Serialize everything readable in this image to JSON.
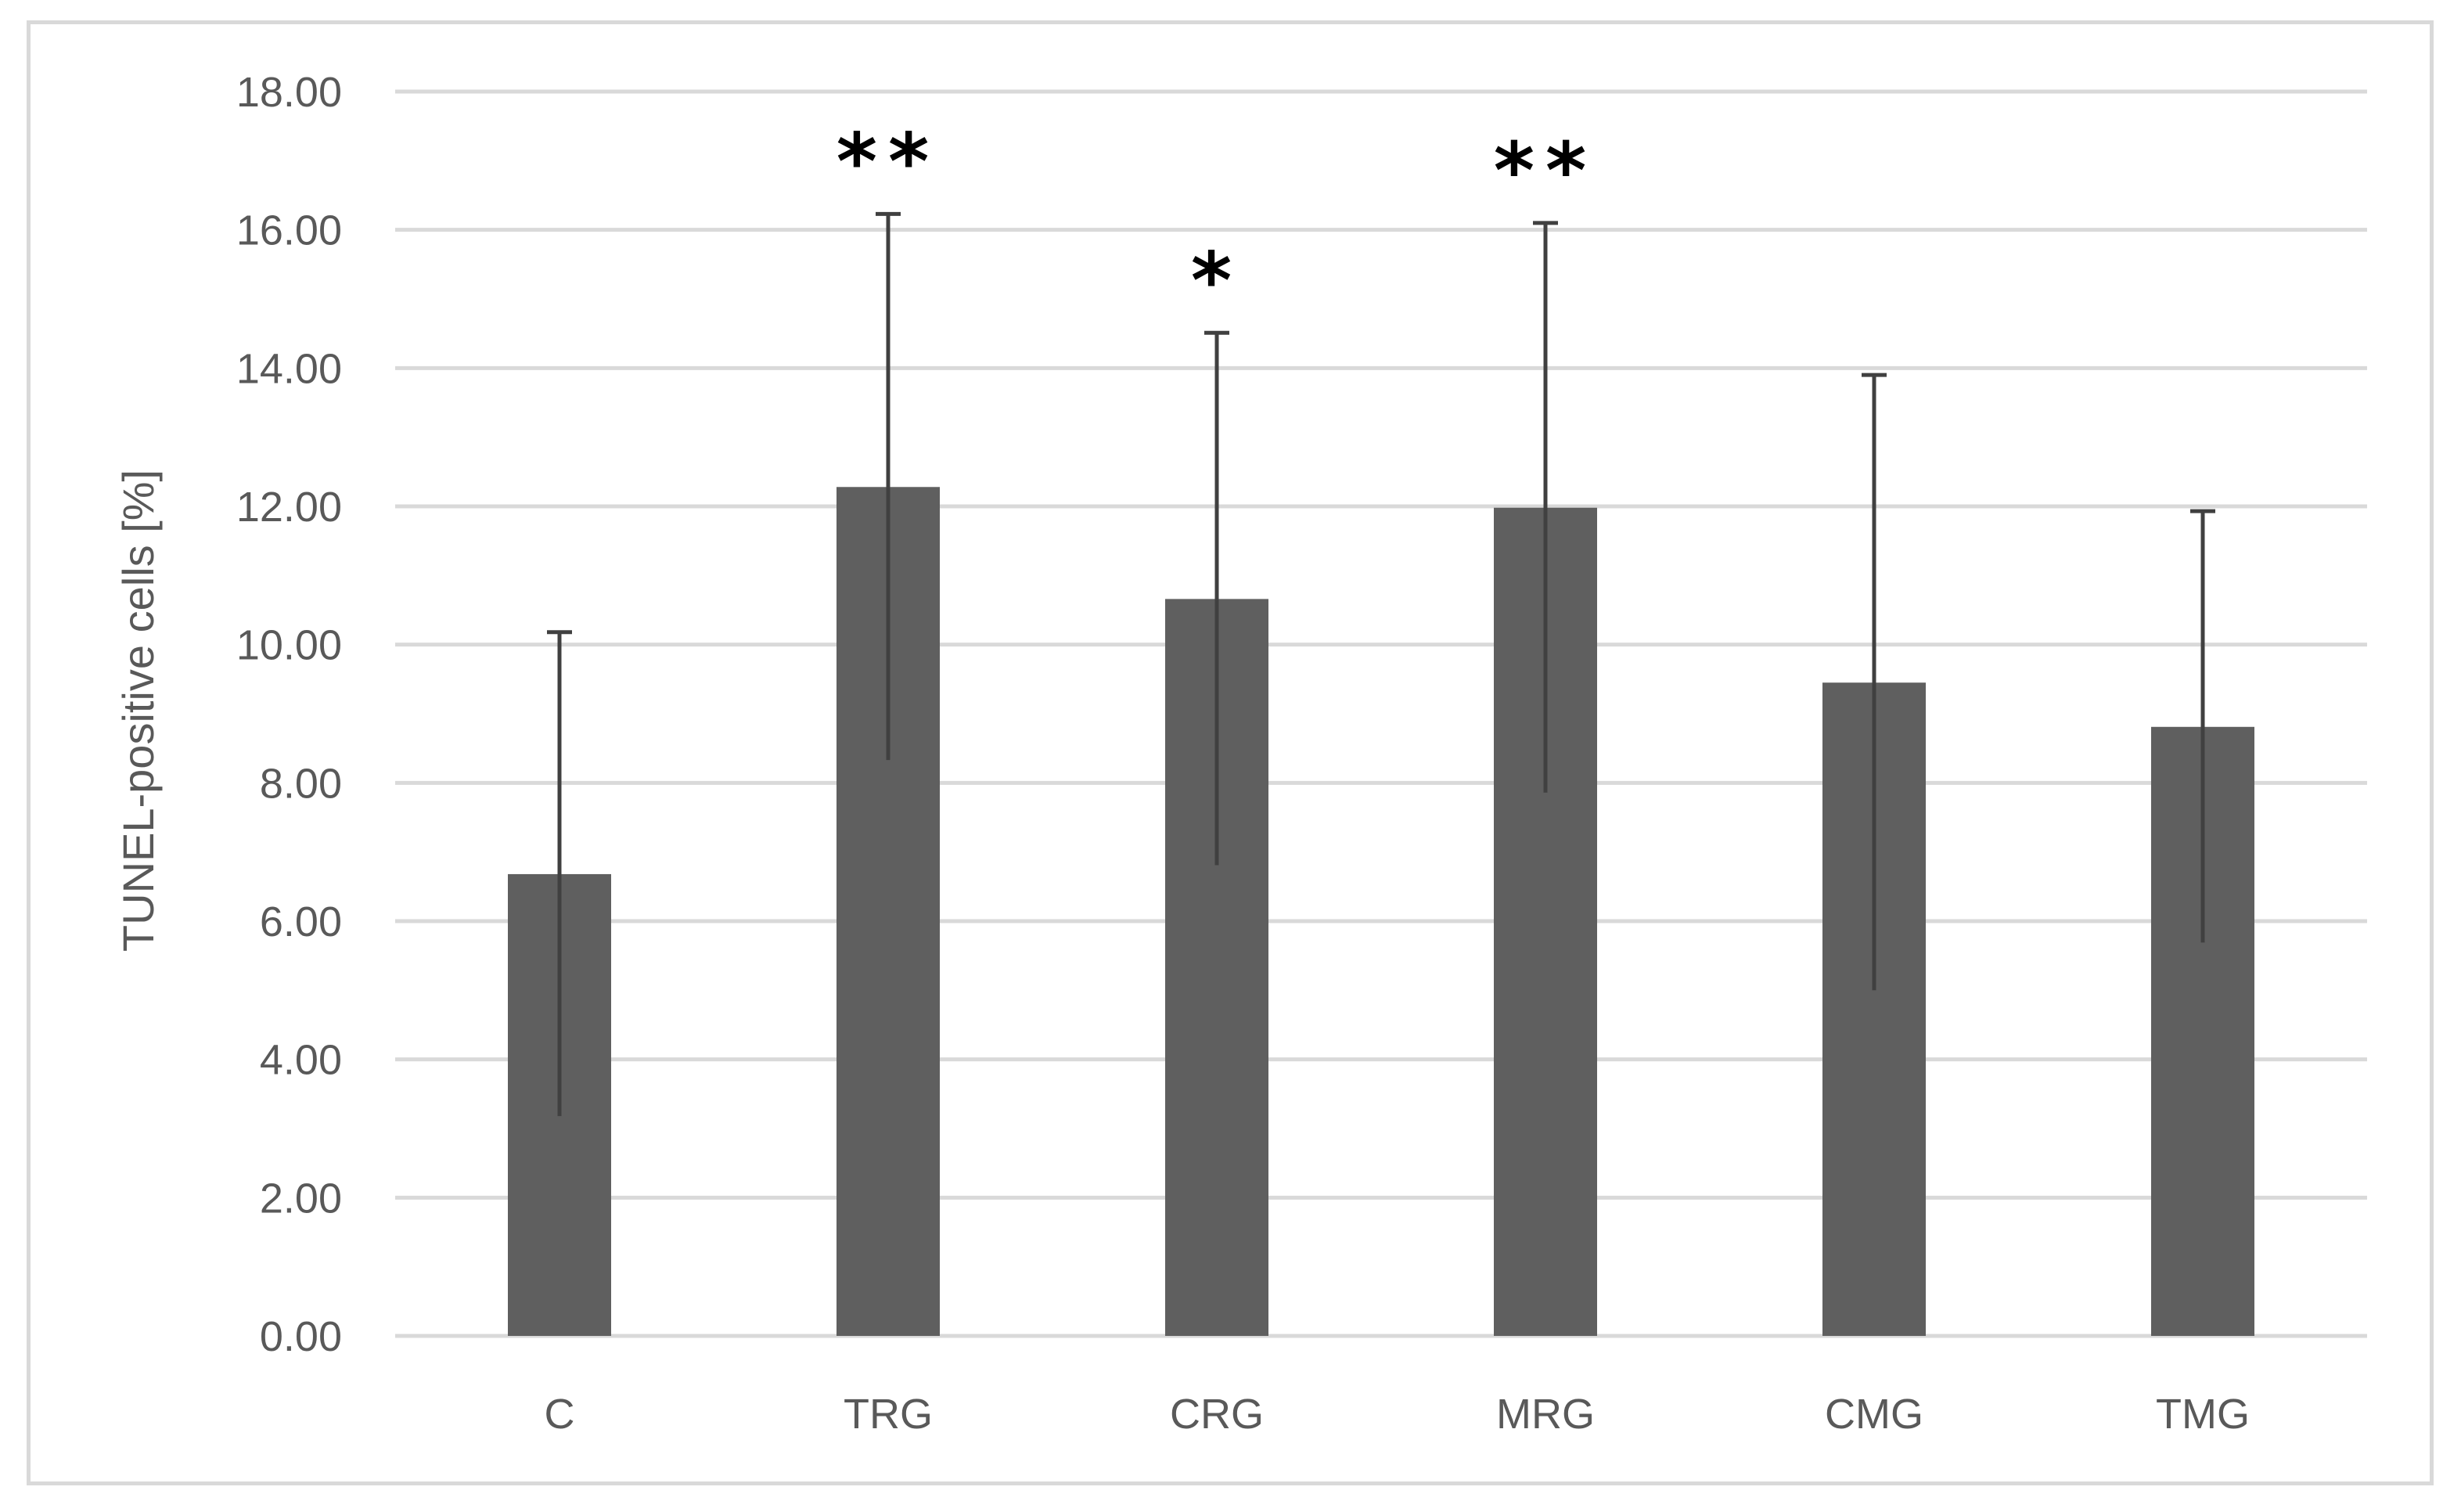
{
  "chart_data": {
    "type": "bar",
    "title": "",
    "xlabel": "",
    "ylabel": "TUNEL-positive cells [%]",
    "categories": [
      "C",
      "TRG",
      "CRG",
      "MRG",
      "CMG",
      "TMG"
    ],
    "values": [
      6.68,
      12.28,
      10.66,
      11.98,
      9.45,
      8.81
    ],
    "error": [
      3.5,
      3.95,
      3.85,
      4.12,
      4.45,
      3.12
    ],
    "significance": [
      "",
      "**",
      "*",
      "**",
      "",
      ""
    ],
    "ylim": [
      0,
      18
    ],
    "yticks": [
      0,
      2,
      4,
      6,
      8,
      10,
      12,
      14,
      16,
      18
    ],
    "ytick_labels": [
      "0.00",
      "2.00",
      "4.00",
      "6.00",
      "8.00",
      "10.00",
      "12.00",
      "14.00",
      "16.00",
      "18.00"
    ],
    "grid": true,
    "legend": "none",
    "bar_color": "#5f5f5f",
    "error_color": "#404040",
    "grid_color": "#d9d9d9"
  }
}
